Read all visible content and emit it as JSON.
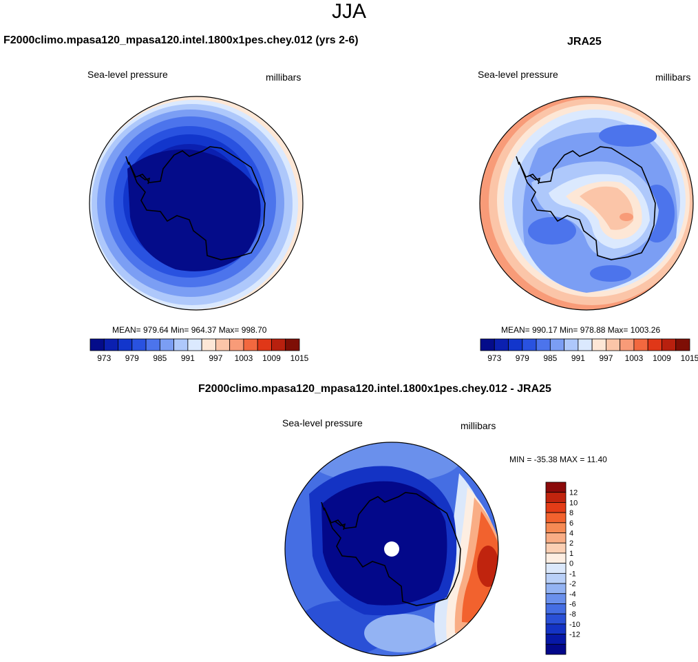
{
  "page": {
    "title": "JJA"
  },
  "panels": [
    {
      "title": "F2000climo.mpasa120_mpasa120.intel.1800x1pes.chey.012 (yrs 2-6)",
      "left_label": "Sea-level pressure",
      "right_label": "millibars",
      "stats": "MEAN= 979.64  Min= 964.37  Max= 998.70",
      "palette": [
        "#040c8a",
        "#0b20b0",
        "#1236cc",
        "#2952e0",
        "#4c74ec",
        "#7b9ef4",
        "#aec8fb",
        "#dbe9fe",
        "#fde7d6",
        "#fbc5a8",
        "#f89b78",
        "#f2683f",
        "#e03718",
        "#b8200e",
        "#7e0e05"
      ],
      "colorbar_labels": [
        "973",
        "979",
        "985",
        "991",
        "997",
        "1003",
        "1009",
        "1015"
      ]
    },
    {
      "title": "JRA25",
      "left_label": "Sea-level pressure",
      "right_label": "millibars",
      "stats": "MEAN= 990.17  Min= 978.88  Max= 1003.26",
      "palette": [
        "#040c8a",
        "#0b20b0",
        "#1236cc",
        "#2952e0",
        "#4c74ec",
        "#7b9ef4",
        "#aec8fb",
        "#dbe9fe",
        "#fde7d6",
        "#fbc5a8",
        "#f89b78",
        "#f2683f",
        "#e03718",
        "#b8200e",
        "#7e0e05"
      ],
      "colorbar_labels": [
        "973",
        "979",
        "985",
        "991",
        "997",
        "1003",
        "1009",
        "1015"
      ]
    },
    {
      "title": "F2000climo.mpasa120_mpasa120.intel.1800x1pes.chey.012 - JRA25",
      "left_label": "Sea-level pressure",
      "right_label": "millibars",
      "stats": "MIN = -35.38 MAX =  11.40",
      "palette": [
        "#8b0a0a",
        "#c0240e",
        "#e33c17",
        "#f2622e",
        "#f68a54",
        "#f9ad85",
        "#fbcfb3",
        "#fdeee2",
        "#dbe8fb",
        "#b9d0f8",
        "#93b3f3",
        "#6a90ec",
        "#456ee3",
        "#2a50d6",
        "#1433c4",
        "#0718a6",
        "#03088a"
      ],
      "colorbar_labels": [
        "12",
        "10",
        "8",
        "6",
        "4",
        "2",
        "1",
        "0",
        "-1",
        "-2",
        "-4",
        "-6",
        "-8",
        "-10",
        "-12"
      ]
    }
  ]
}
